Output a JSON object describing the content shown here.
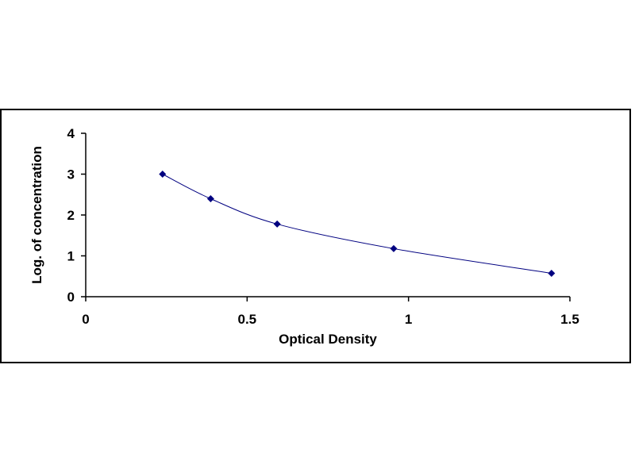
{
  "chart_data": {
    "type": "scatter",
    "title": "",
    "xlabel": "Optical Density",
    "ylabel": "Log. of concentration",
    "xlim": [
      0,
      1.5
    ],
    "ylim": [
      0,
      4
    ],
    "x_ticks": [
      0,
      0.5,
      1,
      1.5
    ],
    "x_tick_labels": [
      "0",
      "0.5",
      "1",
      "1.5"
    ],
    "y_ticks": [
      0,
      1,
      2,
      3,
      4
    ],
    "y_tick_labels": [
      "0",
      "1",
      "2",
      "3",
      "4"
    ],
    "grid": false,
    "series": [
      {
        "x": [
          0.238,
          0.387,
          0.593,
          0.954,
          1.443
        ],
        "y": [
          3.0,
          2.398,
          1.778,
          1.176,
          0.574
        ],
        "marker": "diamond",
        "line": "smooth",
        "color": "#000080"
      }
    ]
  }
}
